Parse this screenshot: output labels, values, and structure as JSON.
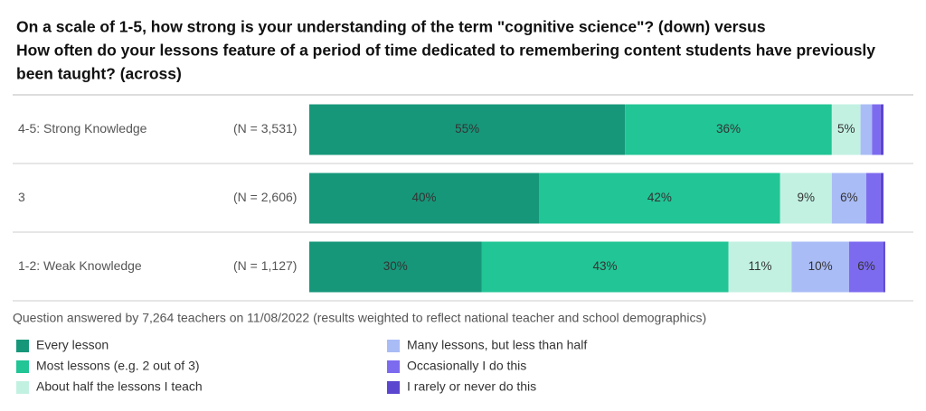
{
  "chart_data": {
    "type": "stacked-bar-horizontal",
    "title_lines": [
      "On a scale of 1-5, how strong is your understanding of the term \"cognitive science\"? (down) versus",
      "How often do your lessons feature of a period of time dedicated to remembering content students have previously",
      "been taught? (across)"
    ],
    "categories": [
      "4-5: Strong Knowledge",
      "3",
      "1-2: Weak Knowledge"
    ],
    "category_notes": [
      "(N = 3,531)",
      "(N = 2,606)",
      "(N = 1,127)"
    ],
    "xlim": [
      0,
      100
    ],
    "series": [
      {
        "name": "Every lesson",
        "color": "#17977a",
        "label_color": "#ffffff",
        "values": [
          55,
          40,
          30
        ],
        "value_labels": [
          "55%",
          "40%",
          "30%"
        ]
      },
      {
        "name": "Most lessons (e.g. 2 out of 3)",
        "color": "#21c596",
        "label_color": "#1f2a2a",
        "values": [
          36,
          42,
          43
        ],
        "value_labels": [
          "36%",
          "42%",
          "43%"
        ]
      },
      {
        "name": "About half the lessons I teach",
        "color": "#c2f1e2",
        "label_color": "#1f2a2a",
        "values": [
          5,
          9,
          11
        ],
        "value_labels": [
          "5%",
          "9%",
          "11%"
        ]
      },
      {
        "name": "Many lessons, but less than half",
        "color": "#aabcf6",
        "label_color": "#1f2a2a",
        "values": [
          2,
          6,
          10
        ],
        "value_labels": [
          null,
          "6%",
          "10%"
        ]
      },
      {
        "name": "Occasionally I do this",
        "color": "#7d6bef",
        "label_color": "#ffffff",
        "values": [
          1.5,
          2.5,
          6
        ],
        "value_labels": [
          null,
          null,
          "6%"
        ]
      },
      {
        "name": "I rarely or never do this",
        "color": "#5b46cf",
        "label_color": "#ffffff",
        "values": [
          0.5,
          0.5,
          0.3
        ],
        "value_labels": [
          null,
          null,
          null
        ]
      }
    ],
    "footnote": "Question answered by 7,264 teachers on 11/08/2022 (results weighted to reflect national teacher and school demographics)"
  }
}
